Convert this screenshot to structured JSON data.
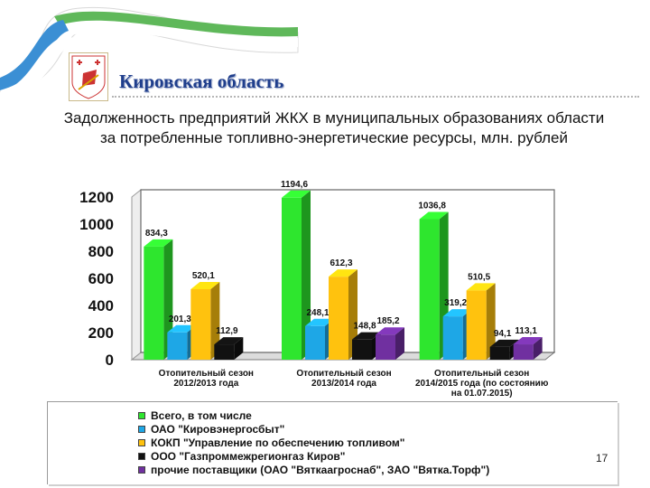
{
  "header": {
    "region": "Кировская область"
  },
  "title": "Задолженность предприятий ЖКХ в муниципальных образованиях области за потребленные топливно-энергетические ресурсы, млн. рублей",
  "chart_data": {
    "type": "bar",
    "categories": [
      [
        "Отопительный сезон",
        "2012/2013 года"
      ],
      [
        "Отопительный сезон",
        "2013/2014 года"
      ],
      [
        "Отопительный сезон",
        "2014/2015 года (по состоянию",
        "на 01.07.2015)"
      ]
    ],
    "yticks": [
      "0",
      "200",
      "400",
      "600",
      "800",
      "1000",
      "1200"
    ],
    "ylim": [
      0,
      1200
    ],
    "series": [
      {
        "name": "Всего, в том числе",
        "color": "#2ee62e",
        "values": [
          834.3,
          1194.6,
          1036.8
        ],
        "labels": [
          "834,3",
          "1194,6",
          "1036,8"
        ]
      },
      {
        "name": "ОАО \"Кировэнергосбыт\"",
        "color": "#1ea7e6",
        "values": [
          201.3,
          248.1,
          319.2
        ],
        "labels": [
          "201,3",
          "248,1",
          "319,2"
        ]
      },
      {
        "name": "КОКП \"Управление по обеспечению топливом\"",
        "color": "#ffc20e",
        "values": [
          520.1,
          612.3,
          510.5
        ],
        "labels": [
          "520,1",
          "612,3",
          "510,5"
        ]
      },
      {
        "name": "ООО \"Газпроммежрегионгаз Киров\"",
        "color": "#111111",
        "values": [
          112.9,
          148.8,
          94.1
        ],
        "labels": [
          "112,9",
          "148,8",
          "94,1"
        ]
      },
      {
        "name": "прочие поставщики (ОАО \"Вяткаагроснаб\", ЗАО \"Вятка.Торф\")",
        "color": "#7030a0",
        "values": [
          null,
          185.2,
          113.1
        ],
        "labels": [
          "",
          "185,2",
          "113,1"
        ]
      }
    ],
    "legend_position": "bottom",
    "grid": false
  },
  "page_number": "17"
}
